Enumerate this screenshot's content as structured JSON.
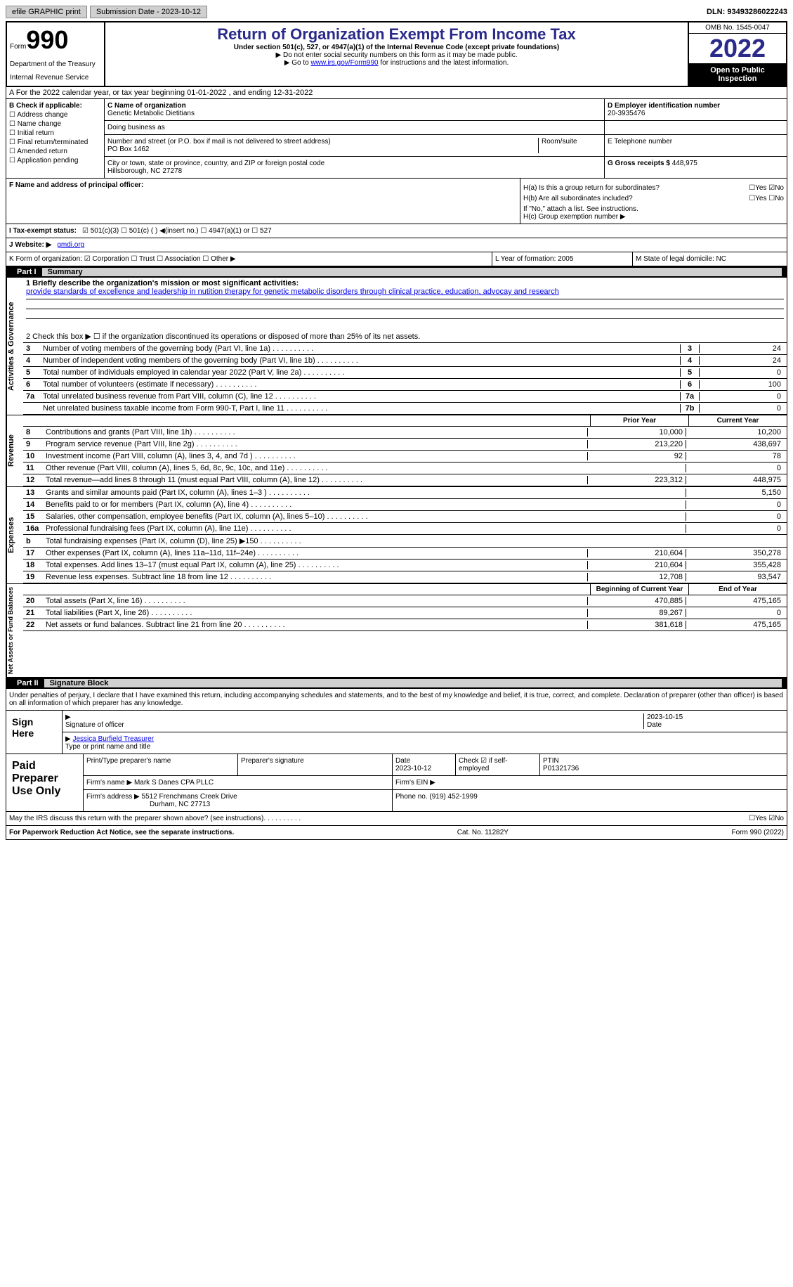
{
  "topBar": {
    "efile": "efile GRAPHIC print",
    "submission": "Submission Date - 2023-10-12",
    "dln": "DLN: 93493286022243"
  },
  "header": {
    "form": "Form",
    "formNum": "990",
    "dept": "Department of the Treasury",
    "irs": "Internal Revenue Service",
    "title": "Return of Organization Exempt From Income Tax",
    "sub": "Under section 501(c), 527, or 4947(a)(1) of the Internal Revenue Code (except private foundations)",
    "note1": "▶ Do not enter social security numbers on this form as it may be made public.",
    "note2": "▶ Go to ",
    "link": "www.irs.gov/Form990",
    "note3": " for instructions and the latest information.",
    "omb": "OMB No. 1545-0047",
    "year": "2022",
    "open": "Open to Public Inspection"
  },
  "rowA": "A For the 2022 calendar year, or tax year beginning 01-01-2022    , and ending 12-31-2022",
  "colB": {
    "label": "B Check if applicable:",
    "items": [
      "☐ Address change",
      "☐ Name change",
      "☐ Initial return",
      "☐ Final return/terminated",
      "☐ Amended return",
      "☐ Application pending"
    ]
  },
  "colC": {
    "nameLabel": "C Name of organization",
    "name": "Genetic Metabolic Dietitians",
    "dbaLabel": "Doing business as",
    "dba": "",
    "addrLabel": "Number and street (or P.O. box if mail is not delivered to street address)",
    "addr": "PO Box 1462",
    "roomLabel": "Room/suite",
    "cityLabel": "City or town, state or province, country, and ZIP or foreign postal code",
    "city": "Hillsborough, NC  27278"
  },
  "colD": {
    "label": "D Employer identification number",
    "ein": "20-3935476",
    "telLabel": "E Telephone number",
    "tel": "",
    "grossLabel": "G Gross receipts $",
    "gross": "448,975"
  },
  "f": "F  Name and address of principal officer:",
  "h": {
    "a": "H(a)  Is this a group return for subordinates?",
    "ay": "☐Yes ☑No",
    "b": "H(b)  Are all subordinates included?",
    "by": "☐Yes ☐No",
    "bnote": "If \"No,\" attach a list. See instructions.",
    "c": "H(c)  Group exemption number ▶"
  },
  "i": {
    "label": "I   Tax-exempt status:",
    "opts": "☑ 501(c)(3)    ☐  501(c) (  ) ◀(insert no.)    ☐  4947(a)(1) or  ☐  527"
  },
  "j": {
    "label": "J   Website: ▶",
    "val": "gmdi.org"
  },
  "k": {
    "label": "K Form of organization:",
    "opts": "☑ Corporation  ☐ Trust  ☐ Association  ☐ Other ▶"
  },
  "l": {
    "label": "L Year of formation:",
    "val": "2005"
  },
  "m": {
    "label": "M State of legal domicile:",
    "val": "NC"
  },
  "part1": {
    "num": "Part I",
    "title": "Summary"
  },
  "line1": {
    "label": "1  Briefly describe the organization's mission or most significant activities:",
    "text": "provide standards of excellence and leadership in nutition therapy for genetic metabolic disorders through clinical practice, education, advocay and research"
  },
  "line2": "2    Check this box ▶ ☐ if the organization discontinued its operations or disposed of more than 25% of its net assets.",
  "govLines": [
    {
      "n": "3",
      "t": "Number of voting members of the governing body (Part VI, line 1a)",
      "bn": "3",
      "v": "24"
    },
    {
      "n": "4",
      "t": "Number of independent voting members of the governing body (Part VI, line 1b)",
      "bn": "4",
      "v": "24"
    },
    {
      "n": "5",
      "t": "Total number of individuals employed in calendar year 2022 (Part V, line 2a)",
      "bn": "5",
      "v": "0"
    },
    {
      "n": "6",
      "t": "Total number of volunteers (estimate if necessary)",
      "bn": "6",
      "v": "100"
    },
    {
      "n": "7a",
      "t": "Total unrelated business revenue from Part VIII, column (C), line 12",
      "bn": "7a",
      "v": "0"
    },
    {
      "n": "",
      "t": "Net unrelated business taxable income from Form 990-T, Part I, line 11",
      "bn": "7b",
      "v": "0"
    }
  ],
  "revHead": {
    "py": "Prior Year",
    "cy": "Current Year"
  },
  "revLines": [
    {
      "n": "8",
      "t": "Contributions and grants (Part VIII, line 1h)",
      "pv": "10,000",
      "cv": "10,200"
    },
    {
      "n": "9",
      "t": "Program service revenue (Part VIII, line 2g)",
      "pv": "213,220",
      "cv": "438,697"
    },
    {
      "n": "10",
      "t": "Investment income (Part VIII, column (A), lines 3, 4, and 7d )",
      "pv": "92",
      "cv": "78"
    },
    {
      "n": "11",
      "t": "Other revenue (Part VIII, column (A), lines 5, 6d, 8c, 9c, 10c, and 11e)",
      "pv": "",
      "cv": "0"
    },
    {
      "n": "12",
      "t": "Total revenue—add lines 8 through 11 (must equal Part VIII, column (A), line 12)",
      "pv": "223,312",
      "cv": "448,975"
    }
  ],
  "expLines": [
    {
      "n": "13",
      "t": "Grants and similar amounts paid (Part IX, column (A), lines 1–3 )",
      "pv": "",
      "cv": "5,150"
    },
    {
      "n": "14",
      "t": "Benefits paid to or for members (Part IX, column (A), line 4)",
      "pv": "",
      "cv": "0"
    },
    {
      "n": "15",
      "t": "Salaries, other compensation, employee benefits (Part IX, column (A), lines 5–10)",
      "pv": "",
      "cv": "0"
    },
    {
      "n": "16a",
      "t": "Professional fundraising fees (Part IX, column (A), line 11e)",
      "pv": "",
      "cv": "0"
    },
    {
      "n": "b",
      "t": "Total fundraising expenses (Part IX, column (D), line 25) ▶150",
      "pv": "grey",
      "cv": "grey"
    },
    {
      "n": "17",
      "t": "Other expenses (Part IX, column (A), lines 11a–11d, 11f–24e)",
      "pv": "210,604",
      "cv": "350,278"
    },
    {
      "n": "18",
      "t": "Total expenses. Add lines 13–17 (must equal Part IX, column (A), line 25)",
      "pv": "210,604",
      "cv": "355,428"
    },
    {
      "n": "19",
      "t": "Revenue less expenses. Subtract line 18 from line 12",
      "pv": "12,708",
      "cv": "93,547"
    }
  ],
  "netHead": {
    "py": "Beginning of Current Year",
    "cy": "End of Year"
  },
  "netLines": [
    {
      "n": "20",
      "t": "Total assets (Part X, line 16)",
      "pv": "470,885",
      "cv": "475,165"
    },
    {
      "n": "21",
      "t": "Total liabilities (Part X, line 26)",
      "pv": "89,267",
      "cv": "0"
    },
    {
      "n": "22",
      "t": "Net assets or fund balances. Subtract line 21 from line 20",
      "pv": "381,618",
      "cv": "475,165"
    }
  ],
  "sideLabels": {
    "gov": "Activities & Governance",
    "rev": "Revenue",
    "exp": "Expenses",
    "net": "Net Assets or Fund Balances"
  },
  "part2": {
    "num": "Part II",
    "title": "Signature Block"
  },
  "sigText": "Under penalties of perjury, I declare that I have examined this return, including accompanying schedules and statements, and to the best of my knowledge and belief, it is true, correct, and complete. Declaration of preparer (other than officer) is based on all information of which preparer has any knowledge.",
  "sign": {
    "label": "Sign Here",
    "sigLabel": "Signature of officer",
    "date": "2023-10-15",
    "dateLabel": "Date",
    "name": "Jessica Burfield  Treasurer",
    "nameLabel": "Type or print name and title"
  },
  "paid": {
    "label": "Paid Preparer Use Only",
    "h1": "Print/Type preparer's name",
    "h2": "Preparer's signature",
    "h3": "Date",
    "h3v": "2023-10-12",
    "h4": "Check ☑ if self-employed",
    "h5": "PTIN",
    "h5v": "P01321736",
    "firm": "Firm's name    ▶",
    "firmv": "Mark S Danes CPA PLLC",
    "ein": "Firm's EIN ▶",
    "addr": "Firm's address ▶",
    "addrv": "5512 Frenchmans Creek Drive",
    "addrv2": "Durham, NC  27713",
    "phone": "Phone no.",
    "phonev": "(919) 452-1999"
  },
  "discuss": {
    "q": "May the IRS discuss this return with the preparer shown above? (see instructions)",
    "a": "☐Yes  ☑No"
  },
  "footer": {
    "l": "For Paperwork Reduction Act Notice, see the separate instructions.",
    "m": "Cat. No. 11282Y",
    "r": "Form 990 (2022)"
  }
}
